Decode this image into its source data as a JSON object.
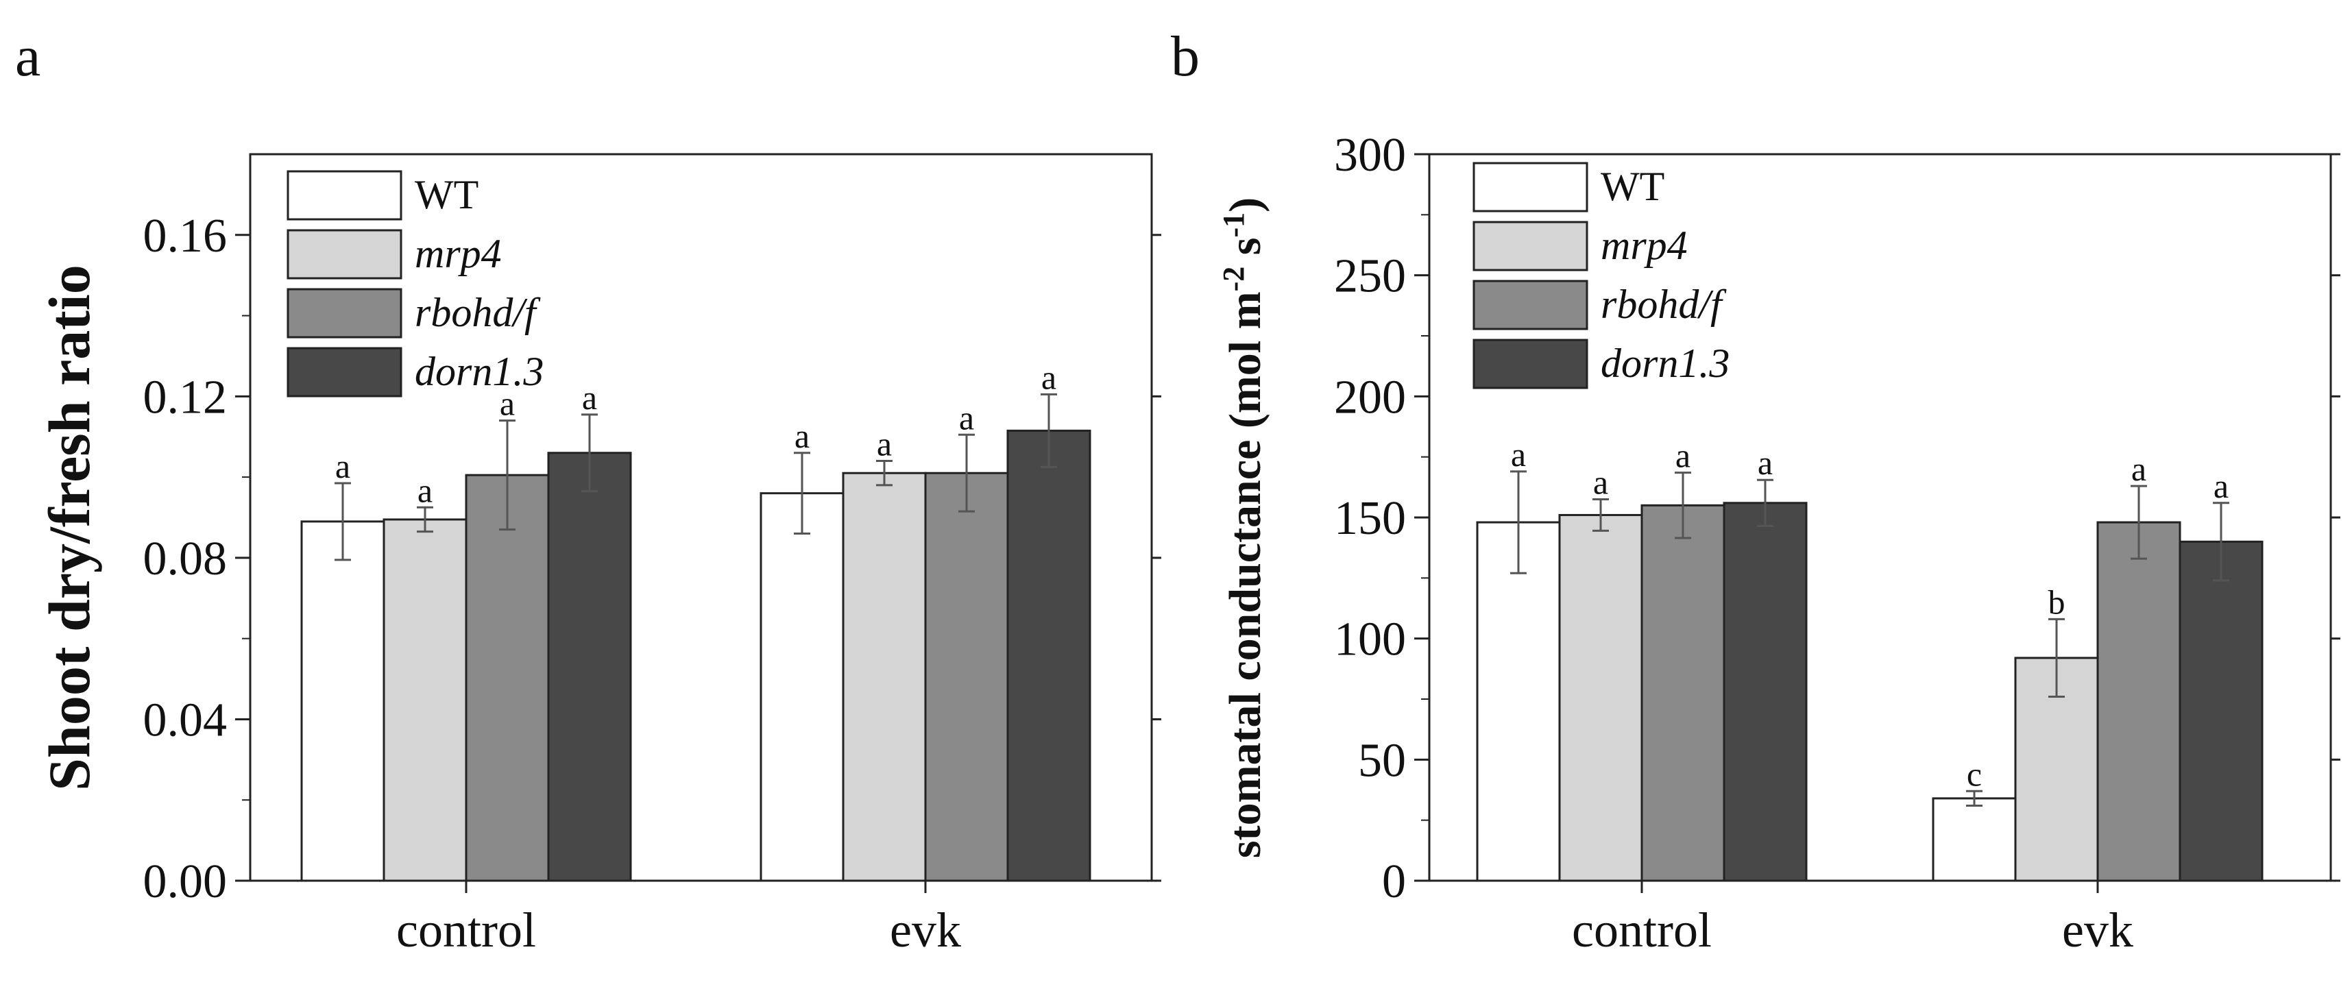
{
  "panels": [
    {
      "letter": "a",
      "chart_data": {
        "type": "bar",
        "title": "",
        "xlabel": "",
        "ylabel": "Shoot dry/fresh ratio",
        "ylim": [
          0,
          0.18
        ],
        "yticks": [
          0.0,
          0.04,
          0.08,
          0.12,
          0.16
        ],
        "ytick_labels": [
          "0.00",
          "0.04",
          "0.08",
          "0.12",
          "0.16"
        ],
        "categories": [
          "control",
          "evk"
        ],
        "series": [
          {
            "name": "WT",
            "values": [
              0.089,
              0.096
            ],
            "errors": [
              0.0095,
              0.01
            ],
            "sig": [
              "a",
              "a"
            ]
          },
          {
            "name": "mrp4",
            "values": [
              0.0895,
              0.101
            ],
            "errors": [
              0.003,
              0.003
            ],
            "sig": [
              "a",
              "a"
            ]
          },
          {
            "name": "rbohd/f",
            "values": [
              0.1005,
              0.101
            ],
            "errors": [
              0.0135,
              0.0095
            ],
            "sig": [
              "a",
              "a"
            ]
          },
          {
            "name": "dorn1.3",
            "values": [
              0.106,
              0.1115
            ],
            "errors": [
              0.0095,
              0.009
            ],
            "sig": [
              "a",
              "a"
            ]
          }
        ],
        "legend": "top-left"
      }
    },
    {
      "letter": "b",
      "chart_data": {
        "type": "bar",
        "title": "",
        "xlabel": "",
        "ylabel": "stomatal conductance (mol m-2 s-1)",
        "ylabel_parts": [
          "stomatal conductance (mol m",
          "-2",
          " s",
          "-1",
          ")"
        ],
        "ylim": [
          0,
          300
        ],
        "yticks": [
          0,
          50,
          100,
          150,
          200,
          250,
          300
        ],
        "ytick_labels": [
          "0",
          "50",
          "100",
          "150",
          "200",
          "250",
          "300"
        ],
        "categories": [
          "control",
          "evk"
        ],
        "series": [
          {
            "name": "WT",
            "values": [
              148,
              34
            ],
            "errors": [
              21,
              3
            ],
            "sig": [
              "a",
              "c"
            ]
          },
          {
            "name": "mrp4",
            "values": [
              151,
              92
            ],
            "errors": [
              6.5,
              16
            ],
            "sig": [
              "a",
              "b"
            ]
          },
          {
            "name": "rbohd/f",
            "values": [
              155,
              148
            ],
            "errors": [
              13.5,
              15
            ],
            "sig": [
              "a",
              "a"
            ]
          },
          {
            "name": "dorn1.3",
            "values": [
              156,
              140
            ],
            "errors": [
              9.5,
              16
            ],
            "sig": [
              "a",
              "a"
            ]
          }
        ],
        "legend": "top-left"
      }
    }
  ],
  "colors": {
    "series": [
      "#ffffff",
      "#d5d5d5",
      "#8a8a8a",
      "#484848"
    ],
    "error_bars": "#555555",
    "axis": "#222222"
  }
}
